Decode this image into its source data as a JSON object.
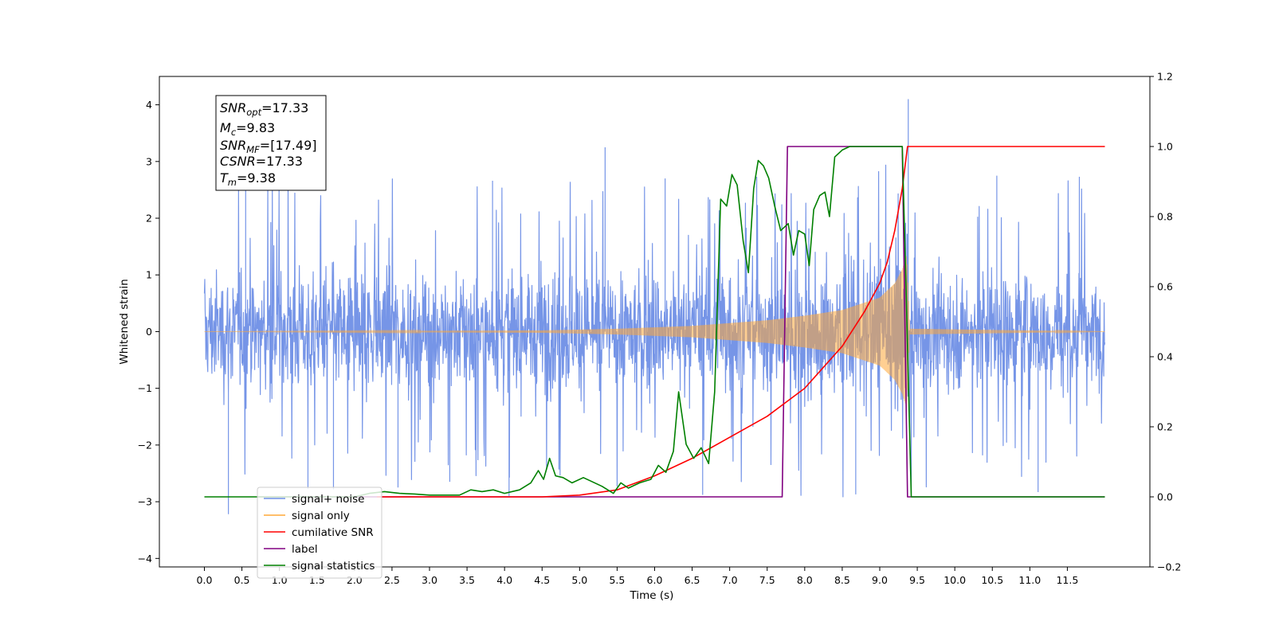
{
  "chart_data": {
    "type": "line",
    "xlabel": "Time (s)",
    "ylabel_left": "Whitened strain",
    "ylabel_right": "",
    "xlim": [
      -0.6,
      12.6
    ],
    "ylim_left": [
      -4.15,
      4.5
    ],
    "ylim_right": [
      -0.2,
      1.2
    ],
    "x_ticks": [
      "0.0",
      "0.5",
      "1.0",
      "1.5",
      "2.0",
      "2.5",
      "3.0",
      "3.5",
      "4.0",
      "4.5",
      "5.0",
      "5.5",
      "6.0",
      "6.5",
      "7.0",
      "7.5",
      "8.0",
      "8.5",
      "9.0",
      "9.5",
      "10.0",
      "10.5",
      "11.0",
      "11.5"
    ],
    "y_ticks_left": [
      "−4",
      "−3",
      "−2",
      "−1",
      "0",
      "1",
      "2",
      "3",
      "4"
    ],
    "y_ticks_right": [
      "−0.2",
      "0.0",
      "0.2",
      "0.4",
      "0.6",
      "0.8",
      "1.0",
      "1.2"
    ],
    "grid": false,
    "legend_position": "lower-left",
    "annotation": {
      "snr_opt": {
        "base": "SNR",
        "sub": "opt",
        "value": "=17.33"
      },
      "mc": {
        "base": "M",
        "sub": "c",
        "value": "=9.83"
      },
      "snr_mf": {
        "base": "SNR",
        "sub": "MF",
        "value": "=[17.49]"
      },
      "csnr": {
        "base": "CSNR",
        "sub": "",
        "value": "=17.33"
      },
      "tm": {
        "base": "T",
        "sub": "m",
        "value": "=9.38"
      }
    },
    "series": [
      {
        "name": "signal+ noise",
        "axis": "left",
        "color": "#6f8fe6",
        "style": "noise band",
        "x_range": [
          0.0,
          12.0
        ],
        "typical_amplitude": 1.3,
        "peak_samples": [
          {
            "x": 0.32,
            "y": -3.22
          },
          {
            "x": 0.55,
            "y": 2.72
          },
          {
            "x": 1.38,
            "y": -2.77
          },
          {
            "x": 1.72,
            "y": -2.78
          },
          {
            "x": 2.58,
            "y": -2.75
          },
          {
            "x": 3.27,
            "y": -2.65
          },
          {
            "x": 3.84,
            "y": 2.66
          },
          {
            "x": 4.06,
            "y": -2.9
          },
          {
            "x": 5.34,
            "y": 3.25
          },
          {
            "x": 6.14,
            "y": 2.7
          },
          {
            "x": 6.64,
            "y": -2.88
          },
          {
            "x": 7.36,
            "y": 2.73
          },
          {
            "x": 8.68,
            "y": -2.87
          },
          {
            "x": 9.38,
            "y": 4.1
          },
          {
            "x": 9.42,
            "y": -2.85
          },
          {
            "x": 10.56,
            "y": 2.75
          },
          {
            "x": 11.11,
            "y": -2.83
          },
          {
            "x": 11.66,
            "y": 2.73
          }
        ]
      },
      {
        "name": "signal only",
        "axis": "left",
        "color": "#ffa838",
        "style": "chirp envelope",
        "envelope": [
          {
            "x": 0.0,
            "y": 0.0
          },
          {
            "x": 4.5,
            "y": 0.02
          },
          {
            "x": 5.5,
            "y": 0.05
          },
          {
            "x": 6.5,
            "y": 0.1
          },
          {
            "x": 7.5,
            "y": 0.2
          },
          {
            "x": 8.0,
            "y": 0.28
          },
          {
            "x": 8.5,
            "y": 0.38
          },
          {
            "x": 9.0,
            "y": 0.6
          },
          {
            "x": 9.2,
            "y": 0.85
          },
          {
            "x": 9.3,
            "y": 1.1
          },
          {
            "x": 9.36,
            "y": 1.35
          },
          {
            "x": 9.4,
            "y": 0.05
          },
          {
            "x": 12.0,
            "y": 0.0
          }
        ]
      },
      {
        "name": "cumilative SNR",
        "axis": "right",
        "color": "#ff0000",
        "points": [
          {
            "x": 2.3,
            "y": 0.0
          },
          {
            "x": 4.5,
            "y": 0.0
          },
          {
            "x": 5.0,
            "y": 0.005
          },
          {
            "x": 5.5,
            "y": 0.02
          },
          {
            "x": 6.0,
            "y": 0.06
          },
          {
            "x": 6.5,
            "y": 0.11
          },
          {
            "x": 7.0,
            "y": 0.17
          },
          {
            "x": 7.5,
            "y": 0.23
          },
          {
            "x": 8.0,
            "y": 0.31
          },
          {
            "x": 8.5,
            "y": 0.43
          },
          {
            "x": 8.8,
            "y": 0.53
          },
          {
            "x": 9.0,
            "y": 0.61
          },
          {
            "x": 9.1,
            "y": 0.67
          },
          {
            "x": 9.2,
            "y": 0.76
          },
          {
            "x": 9.3,
            "y": 0.88
          },
          {
            "x": 9.37,
            "y": 1.0
          },
          {
            "x": 11.5,
            "y": 1.0
          },
          {
            "x": 12.0,
            "y": 1.0
          }
        ]
      },
      {
        "name": "label",
        "axis": "right",
        "color": "#800080",
        "points": [
          {
            "x": 0.7,
            "y": 0.0
          },
          {
            "x": 7.7,
            "y": 0.0
          },
          {
            "x": 7.77,
            "y": 1.0
          },
          {
            "x": 9.3,
            "y": 1.0
          },
          {
            "x": 9.37,
            "y": 0.0
          },
          {
            "x": 12.0,
            "y": 0.0
          }
        ]
      },
      {
        "name": "signal statistics",
        "axis": "right",
        "color": "#008000",
        "points": [
          {
            "x": 0.0,
            "y": 0.0
          },
          {
            "x": 2.0,
            "y": 0.0
          },
          {
            "x": 2.2,
            "y": 0.01
          },
          {
            "x": 2.4,
            "y": 0.015
          },
          {
            "x": 2.6,
            "y": 0.01
          },
          {
            "x": 2.8,
            "y": 0.008
          },
          {
            "x": 3.0,
            "y": 0.005
          },
          {
            "x": 3.4,
            "y": 0.005
          },
          {
            "x": 3.55,
            "y": 0.02
          },
          {
            "x": 3.7,
            "y": 0.015
          },
          {
            "x": 3.85,
            "y": 0.02
          },
          {
            "x": 4.0,
            "y": 0.01
          },
          {
            "x": 4.2,
            "y": 0.02
          },
          {
            "x": 4.35,
            "y": 0.04
          },
          {
            "x": 4.45,
            "y": 0.075
          },
          {
            "x": 4.52,
            "y": 0.05
          },
          {
            "x": 4.6,
            "y": 0.11
          },
          {
            "x": 4.68,
            "y": 0.06
          },
          {
            "x": 4.78,
            "y": 0.055
          },
          {
            "x": 4.9,
            "y": 0.04
          },
          {
            "x": 5.05,
            "y": 0.055
          },
          {
            "x": 5.15,
            "y": 0.045
          },
          {
            "x": 5.3,
            "y": 0.03
          },
          {
            "x": 5.45,
            "y": 0.01
          },
          {
            "x": 5.55,
            "y": 0.04
          },
          {
            "x": 5.65,
            "y": 0.025
          },
          {
            "x": 5.8,
            "y": 0.04
          },
          {
            "x": 5.95,
            "y": 0.05
          },
          {
            "x": 6.05,
            "y": 0.09
          },
          {
            "x": 6.15,
            "y": 0.07
          },
          {
            "x": 6.25,
            "y": 0.13
          },
          {
            "x": 6.32,
            "y": 0.3
          },
          {
            "x": 6.42,
            "y": 0.15
          },
          {
            "x": 6.52,
            "y": 0.11
          },
          {
            "x": 6.62,
            "y": 0.14
          },
          {
            "x": 6.72,
            "y": 0.095
          },
          {
            "x": 6.8,
            "y": 0.3
          },
          {
            "x": 6.88,
            "y": 0.85
          },
          {
            "x": 6.96,
            "y": 0.83
          },
          {
            "x": 7.03,
            "y": 0.92
          },
          {
            "x": 7.1,
            "y": 0.89
          },
          {
            "x": 7.18,
            "y": 0.73
          },
          {
            "x": 7.25,
            "y": 0.64
          },
          {
            "x": 7.32,
            "y": 0.88
          },
          {
            "x": 7.38,
            "y": 0.96
          },
          {
            "x": 7.45,
            "y": 0.945
          },
          {
            "x": 7.52,
            "y": 0.91
          },
          {
            "x": 7.6,
            "y": 0.83
          },
          {
            "x": 7.68,
            "y": 0.76
          },
          {
            "x": 7.78,
            "y": 0.78
          },
          {
            "x": 7.85,
            "y": 0.69
          },
          {
            "x": 7.92,
            "y": 0.76
          },
          {
            "x": 8.0,
            "y": 0.75
          },
          {
            "x": 8.06,
            "y": 0.66
          },
          {
            "x": 8.12,
            "y": 0.82
          },
          {
            "x": 8.2,
            "y": 0.86
          },
          {
            "x": 8.27,
            "y": 0.87
          },
          {
            "x": 8.33,
            "y": 0.8
          },
          {
            "x": 8.4,
            "y": 0.97
          },
          {
            "x": 8.5,
            "y": 0.99
          },
          {
            "x": 8.6,
            "y": 1.0
          },
          {
            "x": 9.3,
            "y": 1.0
          },
          {
            "x": 9.35,
            "y": 0.6
          },
          {
            "x": 9.42,
            "y": 0.0
          },
          {
            "x": 12.0,
            "y": 0.0
          }
        ]
      }
    ]
  }
}
